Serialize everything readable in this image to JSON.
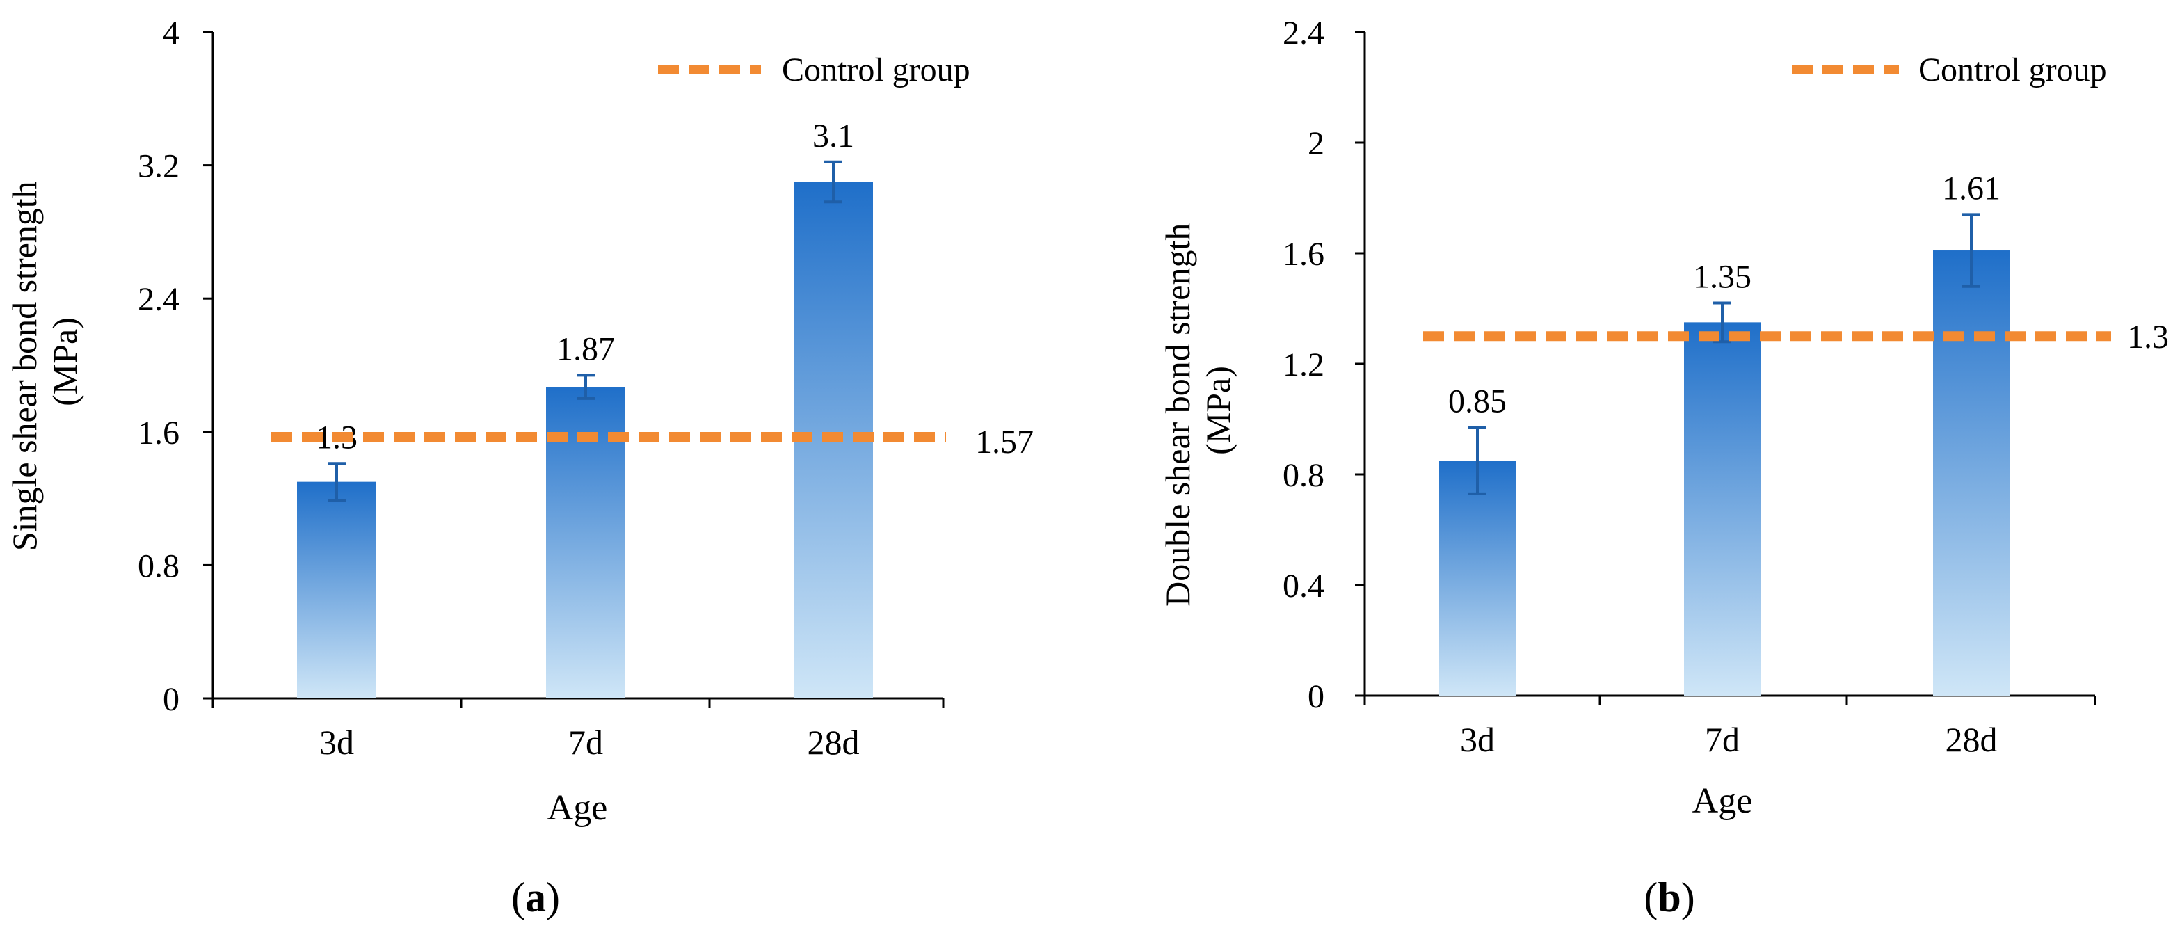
{
  "chart_data": [
    {
      "panel_label": "a",
      "type": "bar",
      "categories": [
        "3d",
        "7d",
        "28d"
      ],
      "values": [
        1.3,
        1.87,
        3.1
      ],
      "value_labels": [
        "1.3",
        "1.87",
        "3.1"
      ],
      "error_bars": [
        0.11,
        0.07,
        0.12
      ],
      "xlabel": "Age",
      "ylabel_line1": "Single shear bond strength",
      "ylabel_line2": "(MPa)",
      "ylim": [
        0,
        4
      ],
      "yticks": [
        0,
        0.8,
        1.6,
        2.4,
        3.2,
        4
      ],
      "ytick_labels": [
        "0",
        "0.8",
        "1.6",
        "2.4",
        "3.2",
        "4"
      ],
      "control_value": 1.57,
      "control_label": "1.57",
      "legend_label": "Control group",
      "legend_position": "top-right"
    },
    {
      "panel_label": "b",
      "type": "bar",
      "categories": [
        "3d",
        "7d",
        "28d"
      ],
      "values": [
        0.85,
        1.35,
        1.61
      ],
      "value_labels": [
        "0.85",
        "1.35",
        "1.61"
      ],
      "error_bars": [
        0.12,
        0.07,
        0.13
      ],
      "xlabel": "Age",
      "ylabel_line1": "Double shear bond strength",
      "ylabel_line2": "(MPa)",
      "ylim": [
        0,
        2.4
      ],
      "yticks": [
        0,
        0.4,
        0.8,
        1.2,
        1.6,
        2,
        2.4
      ],
      "ytick_labels": [
        "0",
        "0.4",
        "0.8",
        "1.2",
        "1.6",
        "2",
        "2.4"
      ],
      "control_value": 1.3,
      "control_label": "1.3",
      "legend_label": "Control group",
      "legend_position": "top-right"
    }
  ],
  "colors": {
    "bar_top": "#1f6fc9",
    "bar_bottom": "#cfe6f7",
    "error_bar": "#1f5fa8",
    "control_line": "#f28a32",
    "axis": "#000000"
  }
}
